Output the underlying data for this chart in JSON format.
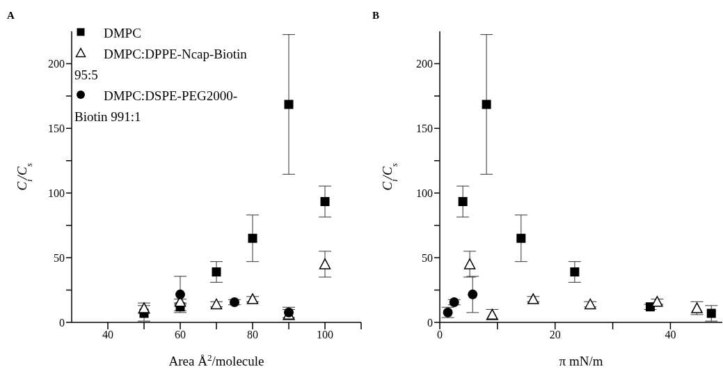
{
  "chart_data": [
    {
      "type": "scatter",
      "title": "A",
      "xlabel": "Area Å$^{2}$/molecule",
      "ylabel": "C$_{i}$/C$_{s}$",
      "xlim": [
        30,
        110
      ],
      "xticks": [
        40,
        {
          "value": 50,
          "label": null
        },
        60,
        {
          "value": 70,
          "label": null
        },
        80,
        {
          "value": 90,
          "label": null
        },
        100,
        {
          "value": 110,
          "label": null
        }
      ],
      "ylim": [
        0,
        225
      ],
      "yticks": [
        0,
        {
          "value": 25,
          "label": null
        },
        50,
        {
          "value": 75,
          "label": null
        },
        100,
        {
          "value": 125,
          "label": null
        },
        150,
        {
          "value": 175,
          "label": null
        },
        200
      ],
      "legend": "top left",
      "series": [
        {
          "name": "DMPC",
          "color": "#000000",
          "marker": "square",
          "x": [
            50,
            60,
            70,
            80,
            90,
            100
          ],
          "values": [
            7,
            12,
            39,
            65,
            168.5,
            93.4
          ],
          "errors": [
            6,
            3,
            8,
            18,
            54,
            12
          ]
        },
        {
          "name": "DMPC:DPPE-Ncap-Biotin 95:5",
          "color": "#000000",
          "marker": "triangle",
          "x": [
            50,
            60,
            70,
            80,
            90,
            100
          ],
          "values": [
            11,
            16,
            14,
            18,
            6,
            45
          ],
          "errors": [
            4,
            2,
            2,
            2,
            4,
            10
          ]
        },
        {
          "name": "DMPC:DSPE-PEG2000-Biotin 991:1",
          "color": "#000000",
          "marker": "circle",
          "x": [
            60,
            75,
            90
          ],
          "values": [
            21.6,
            15.6,
            7.7
          ],
          "errors": [
            14,
            2,
            4
          ]
        }
      ]
    },
    {
      "type": "scatter",
      "title": "B",
      "xlabel": "π mN/m",
      "ylabel": "C$_{i}$/C$_{s}$",
      "xlim": [
        0,
        49
      ],
      "xticks": [
        0,
        {
          "value": 10,
          "label": null
        },
        20,
        {
          "value": 30,
          "label": null
        },
        40
      ],
      "ylim": [
        0,
        225
      ],
      "yticks": [
        0,
        {
          "value": 25,
          "label": null
        },
        50,
        {
          "value": 75,
          "label": null
        },
        100,
        {
          "value": 125,
          "label": null
        },
        150,
        {
          "value": 175,
          "label": null
        },
        200
      ],
      "series": [
        {
          "color": "#000000",
          "marker": "square",
          "x": [
            4,
            8.1,
            14.1,
            23.4,
            36.5,
            47.1
          ],
          "values": [
            93.4,
            168.5,
            65,
            39,
            12,
            7
          ],
          "errors": [
            12,
            54,
            18,
            8,
            2,
            6
          ]
        },
        {
          "color": "#000000",
          "marker": "triangle",
          "x": [
            5.2,
            9.1,
            16.2,
            26.1,
            37.7,
            44.6
          ],
          "values": [
            45,
            6,
            18,
            14,
            16,
            11
          ],
          "errors": [
            10,
            4,
            2,
            2,
            2,
            5
          ]
        },
        {
          "color": "#000000",
          "marker": "circle",
          "x": [
            1.4,
            2.5,
            5.7
          ],
          "values": [
            7.7,
            15.6,
            21.6
          ],
          "errors": [
            4,
            2,
            14
          ]
        }
      ]
    }
  ]
}
